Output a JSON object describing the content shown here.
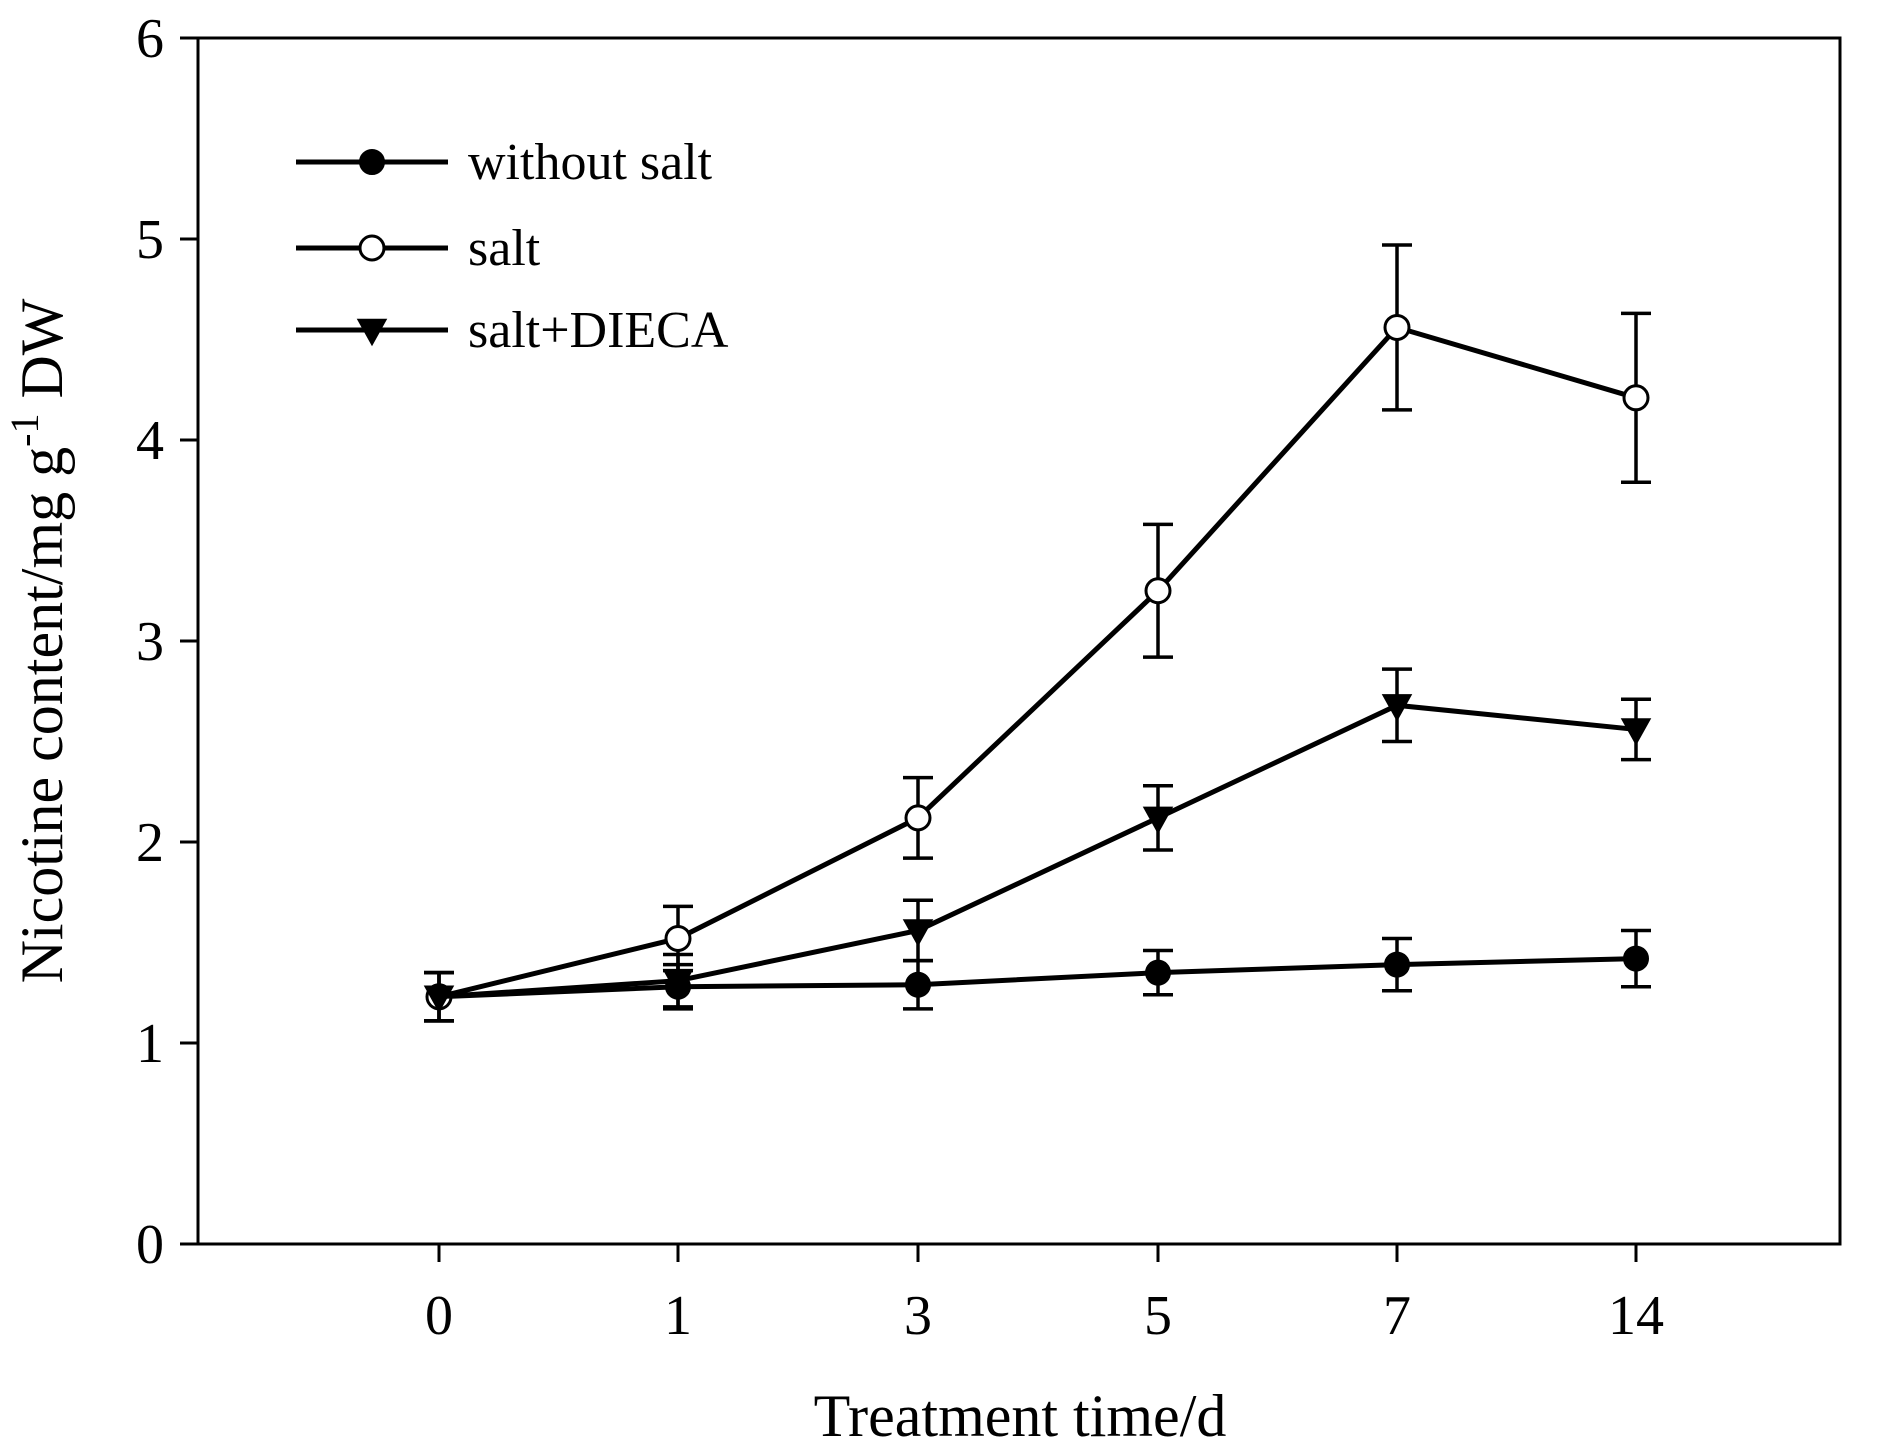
{
  "chart_data": {
    "type": "line",
    "title": "",
    "xlabel": "Treatment time/d",
    "ylabel_main": "Nicotine content/mg g",
    "ylabel_sup": "-1",
    "ylabel_tail": " DW",
    "ylim": [
      0,
      6
    ],
    "yticks": [
      "0",
      "1",
      "2",
      "3",
      "4",
      "5",
      "6"
    ],
    "categories": [
      "0",
      "1",
      "3",
      "5",
      "7",
      "14"
    ],
    "legend_position": "top-left",
    "series": [
      {
        "name": "without salt",
        "marker": "filled-circle",
        "values": [
          1.23,
          1.28,
          1.29,
          1.35,
          1.39,
          1.42
        ],
        "errors": [
          0.12,
          0.11,
          0.12,
          0.11,
          0.13,
          0.14
        ]
      },
      {
        "name": "salt",
        "marker": "open-circle",
        "values": [
          1.23,
          1.52,
          2.12,
          3.25,
          4.56,
          4.21
        ],
        "errors": [
          0.12,
          0.16,
          0.2,
          0.33,
          0.41,
          0.42
        ]
      },
      {
        "name": "salt+DIECA",
        "marker": "filled-triangle-down",
        "values": [
          1.23,
          1.31,
          1.56,
          2.12,
          2.68,
          2.56
        ],
        "errors": [
          0.12,
          0.13,
          0.15,
          0.16,
          0.18,
          0.15
        ]
      }
    ]
  }
}
